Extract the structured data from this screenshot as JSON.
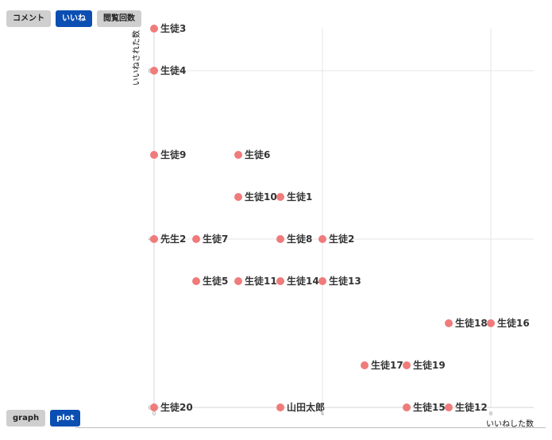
{
  "metric_tabs": [
    {
      "label": "コメント",
      "active": false
    },
    {
      "label": "いいね",
      "active": true
    },
    {
      "label": "閲覧回数",
      "active": false
    }
  ],
  "view_tabs": [
    {
      "label": "graph",
      "active": false
    },
    {
      "label": "plot",
      "active": true
    }
  ],
  "colors": {
    "accent": "#0b4fb3",
    "inactive": "#cfcfcf",
    "point": "#f07b7b",
    "grid": "#e6e6e6"
  },
  "chart_data": {
    "type": "scatter",
    "xlabel": "いいねした数",
    "ylabel": "いいねされた数",
    "xlim": [
      0,
      9
    ],
    "ylim": [
      0,
      9
    ],
    "x_ticks": [
      0,
      4,
      8
    ],
    "y_ticks": [
      0,
      4,
      8
    ],
    "grid": true,
    "points": [
      {
        "name": "生徒3",
        "x": 0,
        "y": 9
      },
      {
        "name": "生徒4",
        "x": 0,
        "y": 8
      },
      {
        "name": "生徒9",
        "x": 0,
        "y": 6
      },
      {
        "name": "生徒6",
        "x": 2,
        "y": 6
      },
      {
        "name": "生徒10",
        "x": 2,
        "y": 5
      },
      {
        "name": "生徒1",
        "x": 3,
        "y": 5
      },
      {
        "name": "先生2",
        "x": 0,
        "y": 4
      },
      {
        "name": "生徒7",
        "x": 1,
        "y": 4
      },
      {
        "name": "生徒8",
        "x": 3,
        "y": 4
      },
      {
        "name": "生徒2",
        "x": 4,
        "y": 4
      },
      {
        "name": "生徒5",
        "x": 1,
        "y": 3
      },
      {
        "name": "生徒11",
        "x": 2,
        "y": 3
      },
      {
        "name": "生徒14",
        "x": 3,
        "y": 3
      },
      {
        "name": "生徒13",
        "x": 4,
        "y": 3
      },
      {
        "name": "生徒18",
        "x": 7,
        "y": 2
      },
      {
        "name": "生徒16",
        "x": 8,
        "y": 2
      },
      {
        "name": "生徒17",
        "x": 5,
        "y": 1
      },
      {
        "name": "生徒19",
        "x": 6,
        "y": 1
      },
      {
        "name": "生徒20",
        "x": 0,
        "y": 0
      },
      {
        "name": "山田太郎",
        "x": 3,
        "y": 0
      },
      {
        "name": "生徒15",
        "x": 6,
        "y": 0
      },
      {
        "name": "生徒12",
        "x": 7,
        "y": 0
      }
    ]
  }
}
